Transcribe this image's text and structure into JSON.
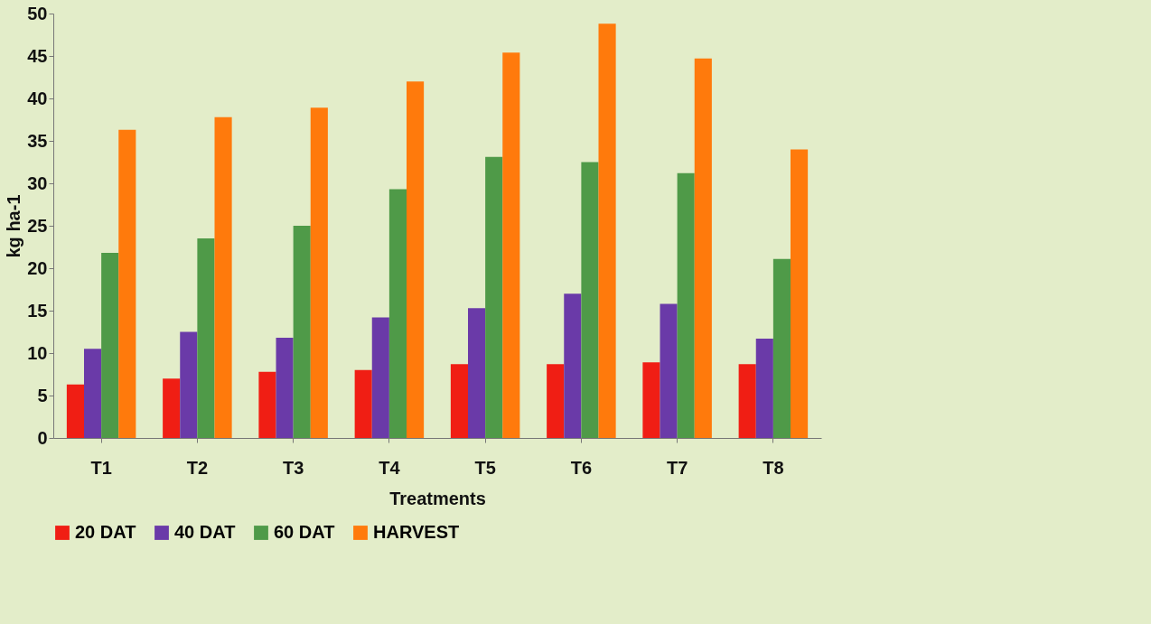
{
  "chart_data": {
    "type": "bar",
    "xlabel": "Treatments",
    "ylabel": "kg ha-1",
    "categories": [
      "T1",
      "T2",
      "T3",
      "T4",
      "T5",
      "T6",
      "T7",
      "T8"
    ],
    "series": [
      {
        "name": "20 DAT",
        "color": "#f01e14",
        "values": [
          6.3,
          7,
          7.8,
          8,
          8.7,
          8.7,
          8.9,
          8.7
        ]
      },
      {
        "name": "40 DAT",
        "color": "#6a3aa8",
        "values": [
          10.5,
          12.5,
          11.8,
          14.2,
          15.3,
          17,
          15.8,
          11.7
        ]
      },
      {
        "name": "60 DAT",
        "color": "#4f9a48",
        "values": [
          21.8,
          23.5,
          25,
          29.3,
          33.1,
          32.5,
          31.2,
          21.1
        ]
      },
      {
        "name": "HARVEST",
        "color": "#ff7a0c",
        "values": [
          36.3,
          37.8,
          38.9,
          42,
          45.4,
          48.8,
          44.7,
          34
        ]
      }
    ],
    "ylim": [
      0,
      50
    ],
    "yticks": [
      0,
      5,
      10,
      15,
      20,
      25,
      30,
      35,
      40,
      45,
      50
    ],
    "grid": false,
    "legend": "bottom"
  }
}
